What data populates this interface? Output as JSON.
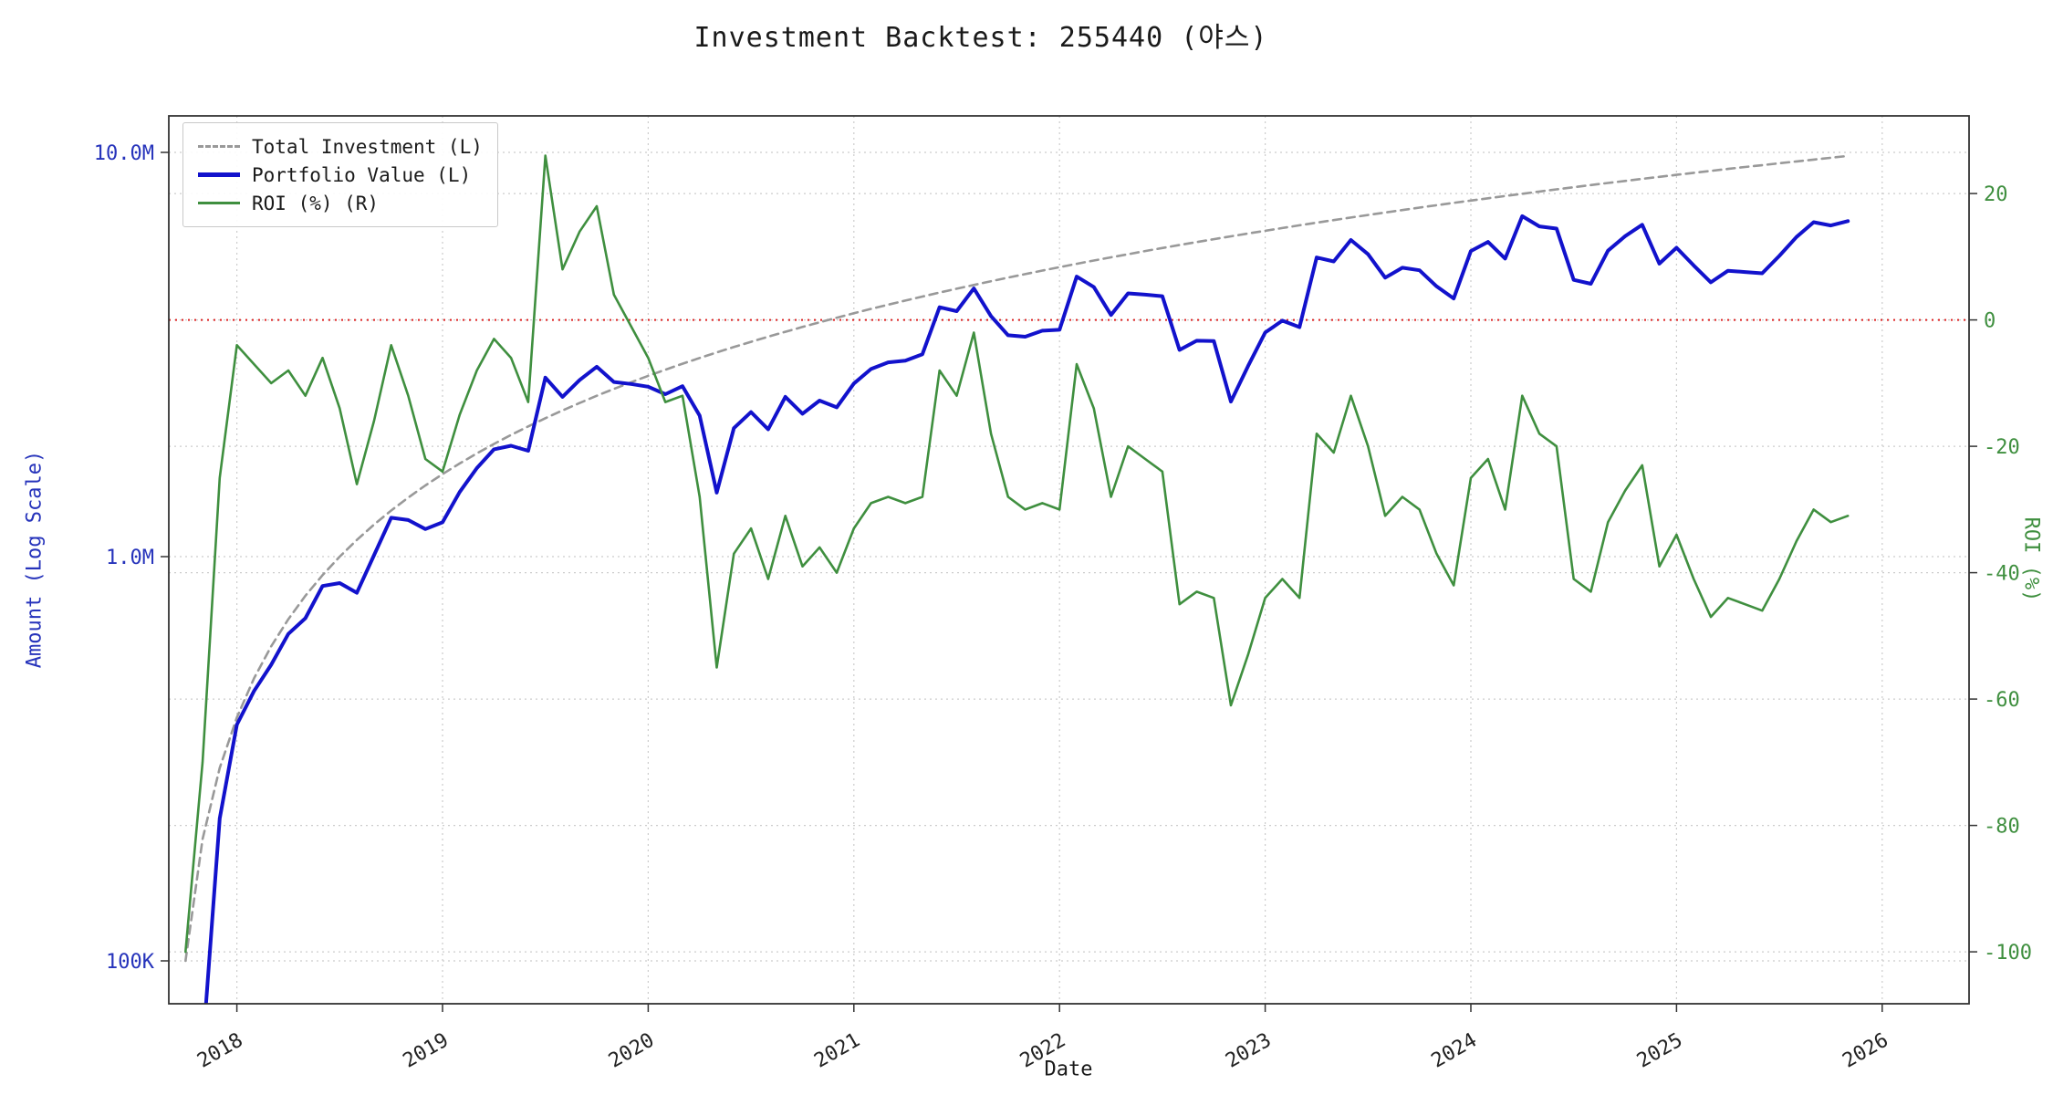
{
  "chart_data": {
    "type": "line",
    "title": "Investment Backtest: 255440 (야스)",
    "grid": true,
    "legend_position": "upper-left",
    "x_axis": {
      "label": "Date",
      "ticks": [
        2018,
        2019,
        2020,
        2021,
        2022,
        2023,
        2024,
        2025,
        2026
      ]
    },
    "left_axis": {
      "label": "Amount (Log Scale)",
      "scale": "log",
      "color": "#2633bb",
      "ylim": [
        78000,
        12300000
      ],
      "ticks": [
        {
          "value": 10000000,
          "label": "10.0M"
        },
        {
          "value": 1000000,
          "label": "1.0M"
        },
        {
          "value": 100000,
          "label": "100K"
        }
      ]
    },
    "right_axis": {
      "label": "ROI (%)",
      "color": "#3f8f3f",
      "ylim": [
        -108,
        32
      ],
      "ticks": [
        {
          "value": 20,
          "label": "20"
        },
        {
          "value": 0,
          "label": "0"
        },
        {
          "value": -20,
          "label": "-20"
        },
        {
          "value": -40,
          "label": "-40"
        },
        {
          "value": -60,
          "label": "-60"
        },
        {
          "value": -80,
          "label": "-80"
        },
        {
          "value": -100,
          "label": "-100"
        }
      ]
    },
    "reference_line": {
      "axis": "right",
      "value": 0,
      "color": "#dd2222",
      "style": "dotted"
    },
    "x": [
      "2017-10",
      "2017-11",
      "2017-12",
      "2018-01",
      "2018-02",
      "2018-03",
      "2018-04",
      "2018-05",
      "2018-06",
      "2018-07",
      "2018-08",
      "2018-09",
      "2018-10",
      "2018-11",
      "2018-12",
      "2019-01",
      "2019-02",
      "2019-03",
      "2019-04",
      "2019-05",
      "2019-06",
      "2019-07",
      "2019-08",
      "2019-09",
      "2019-10",
      "2019-11",
      "2019-12",
      "2020-01",
      "2020-02",
      "2020-03",
      "2020-04",
      "2020-05",
      "2020-06",
      "2020-07",
      "2020-08",
      "2020-09",
      "2020-10",
      "2020-11",
      "2020-12",
      "2021-01",
      "2021-02",
      "2021-03",
      "2021-04",
      "2021-05",
      "2021-06",
      "2021-07",
      "2021-08",
      "2021-09",
      "2021-10",
      "2021-11",
      "2021-12",
      "2022-01",
      "2022-02",
      "2022-03",
      "2022-04",
      "2022-05",
      "2022-06",
      "2022-07",
      "2022-08",
      "2022-09",
      "2022-10",
      "2022-11",
      "2022-12",
      "2023-01",
      "2023-02",
      "2023-03",
      "2023-04",
      "2023-05",
      "2023-06",
      "2023-07",
      "2023-08",
      "2023-09",
      "2023-10",
      "2023-11",
      "2023-12",
      "2024-01",
      "2024-02",
      "2024-03",
      "2024-04",
      "2024-05",
      "2024-06",
      "2024-07",
      "2024-08",
      "2024-09",
      "2024-10",
      "2024-11",
      "2024-12",
      "2025-01",
      "2025-02",
      "2025-03",
      "2025-04",
      "2025-05",
      "2025-06",
      "2025-07",
      "2025-08",
      "2025-09",
      "2025-10",
      "2025-11"
    ],
    "series": [
      {
        "name": "Total Investment (L)",
        "axis": "left",
        "color": "#999999",
        "dash": "9 6",
        "width": 2.6,
        "values": [
          100000,
          200000,
          300000,
          400000,
          500000,
          600000,
          700000,
          800000,
          900000,
          1000000,
          1100000,
          1200000,
          1300000,
          1400000,
          1500000,
          1600000,
          1700000,
          1800000,
          1900000,
          2000000,
          2100000,
          2200000,
          2300000,
          2400000,
          2500000,
          2600000,
          2700000,
          2800000,
          2900000,
          3000000,
          3100000,
          3200000,
          3300000,
          3400000,
          3500000,
          3600000,
          3700000,
          3800000,
          3900000,
          4000000,
          4100000,
          4200000,
          4300000,
          4400000,
          4500000,
          4600000,
          4700000,
          4800000,
          4900000,
          5000000,
          5100000,
          5200000,
          5300000,
          5400000,
          5500000,
          5600000,
          5700000,
          5800000,
          5900000,
          6000000,
          6100000,
          6200000,
          6300000,
          6400000,
          6500000,
          6600000,
          6700000,
          6800000,
          6900000,
          7000000,
          7100000,
          7200000,
          7300000,
          7400000,
          7500000,
          7600000,
          7700000,
          7800000,
          7900000,
          8000000,
          8100000,
          8200000,
          8300000,
          8400000,
          8500000,
          8600000,
          8700000,
          8800000,
          8900000,
          9000000,
          9100000,
          9200000,
          9300000,
          9400000,
          9500000,
          9600000,
          9700000,
          9800000
        ]
      },
      {
        "name": "Portfolio Value (L)",
        "axis": "left",
        "color": "#1212cc",
        "dash": "",
        "width": 4,
        "values": [
          0,
          60000,
          225000,
          384000,
          465000,
          540000,
          644000,
          704000,
          846000,
          860000,
          814000,
          1008000,
          1248000,
          1232000,
          1170000,
          1216000,
          1445000,
          1656000,
          1843000,
          1880000,
          1827000,
          2772000,
          2484000,
          2736000,
          2950000,
          2704000,
          2673000,
          2632000,
          2523000,
          2640000,
          2232000,
          1440000,
          2079000,
          2278000,
          2065000,
          2484000,
          2257000,
          2432000,
          2340000,
          2680000,
          2911000,
          3024000,
          3053000,
          3168000,
          4140000,
          4048000,
          4606000,
          3936000,
          3528000,
          3500000,
          3621000,
          3640000,
          4929000,
          4644000,
          3960000,
          4480000,
          4446000,
          4408000,
          3245000,
          3420000,
          3416000,
          2418000,
          2961000,
          3584000,
          3835000,
          3696000,
          5494000,
          5372000,
          6072000,
          5600000,
          4899000,
          5184000,
          5110000,
          4662000,
          4350000,
          5700000,
          6006000,
          5460000,
          6952000,
          6560000,
          6480000,
          4838000,
          4731000,
          5712000,
          6205000,
          6622000,
          5307000,
          5808000,
          5251000,
          4770000,
          5096000,
          5060000,
          5022000,
          5546000,
          6175000,
          6720000,
          6596000,
          6762000
        ]
      },
      {
        "name": "ROI (%) (R)",
        "axis": "right",
        "color": "#3f8f3f",
        "dash": "",
        "width": 2.6,
        "values": [
          -100,
          -70,
          -25,
          -4,
          -7,
          -10,
          -8,
          -12,
          -6,
          -14,
          -26,
          -16,
          -4,
          -12,
          -22,
          -24,
          -15,
          -8,
          -3,
          -6,
          -13,
          26,
          8,
          14,
          18,
          4,
          -1,
          -6,
          -13,
          -12,
          -28,
          -55,
          -37,
          -33,
          -41,
          -31,
          -39,
          -36,
          -40,
          -33,
          -29,
          -28,
          -29,
          -28,
          -8,
          -12,
          -2,
          -18,
          -28,
          -30,
          -29,
          -30,
          -7,
          -14,
          -28,
          -20,
          -22,
          -24,
          -45,
          -43,
          -44,
          -61,
          -53,
          -44,
          -41,
          -44,
          -18,
          -21,
          -12,
          -20,
          -31,
          -28,
          -30,
          -37,
          -42,
          -25,
          -22,
          -30,
          -12,
          -18,
          -20,
          -41,
          -43,
          -32,
          -27,
          -23,
          -39,
          -34,
          -41,
          -47,
          -44,
          -45,
          -46,
          -41,
          -35,
          -30,
          -32,
          -31
        ]
      }
    ]
  }
}
